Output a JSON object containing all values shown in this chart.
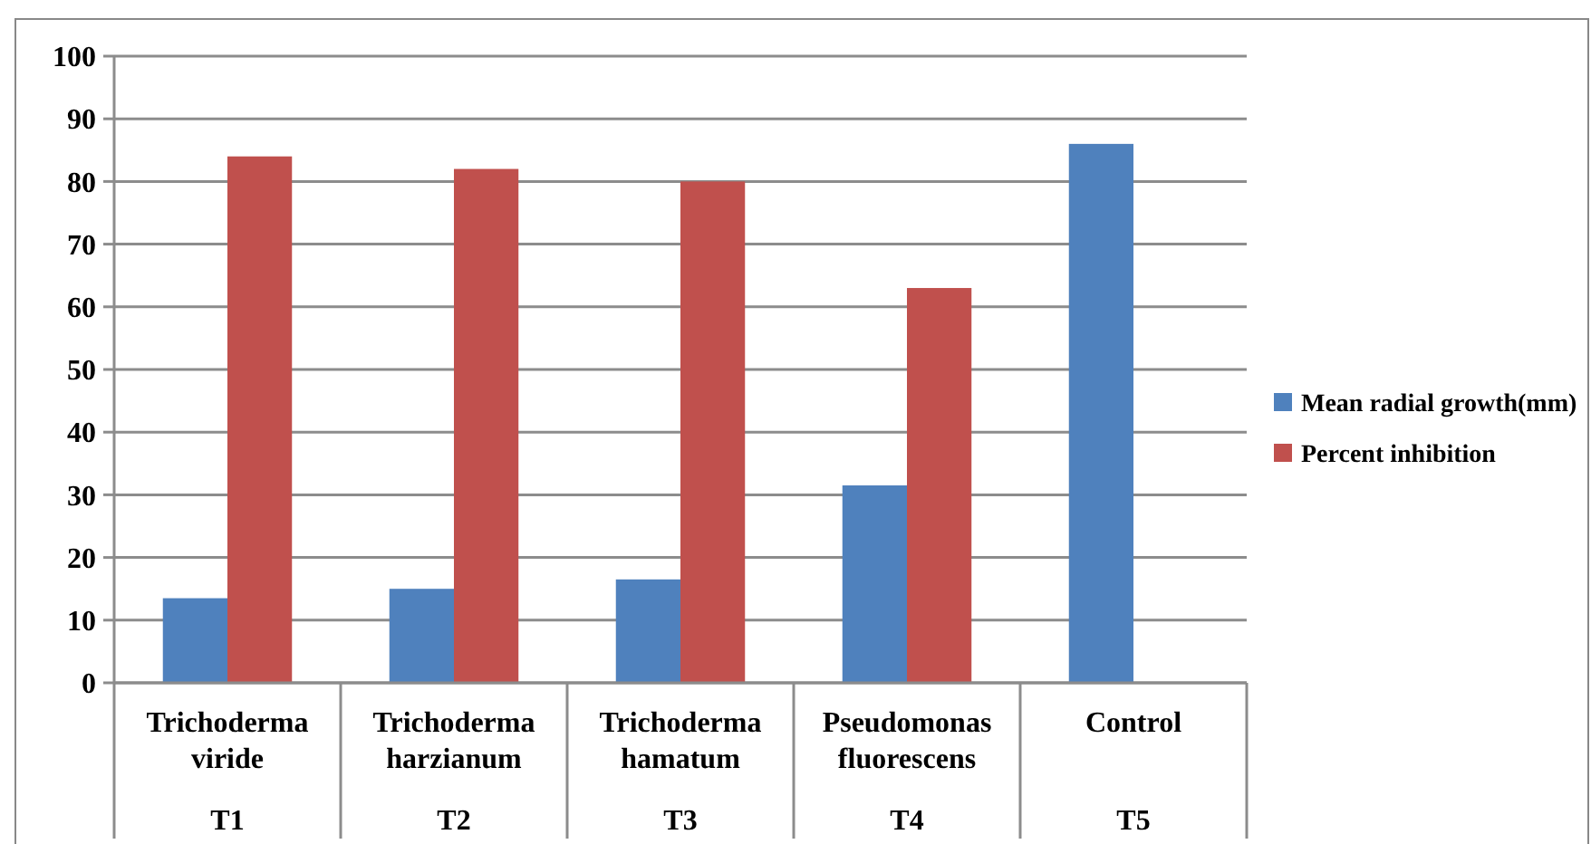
{
  "chart_data": {
    "type": "bar",
    "categories": [
      "Trichoderma\nviride\nT1",
      "Trichoderma\nharzianum\nT2",
      "Trichoderma\nhamatum\nT3",
      "Pseudomonas\nfluorescens\nT4",
      "Control\nT5"
    ],
    "series": [
      {
        "name": "Mean radial growth(mm)",
        "color": "#4f81bd",
        "values": [
          13.5,
          15,
          16.5,
          31.5,
          86
        ]
      },
      {
        "name": "Percent inhibition",
        "color": "#c0504d",
        "values": [
          84,
          82,
          80,
          63,
          null
        ]
      }
    ],
    "ylim": [
      0,
      100
    ],
    "yticks": [
      0,
      10,
      20,
      30,
      40,
      50,
      60,
      70,
      80,
      90,
      100
    ],
    "grid": "y",
    "legend": "right"
  }
}
